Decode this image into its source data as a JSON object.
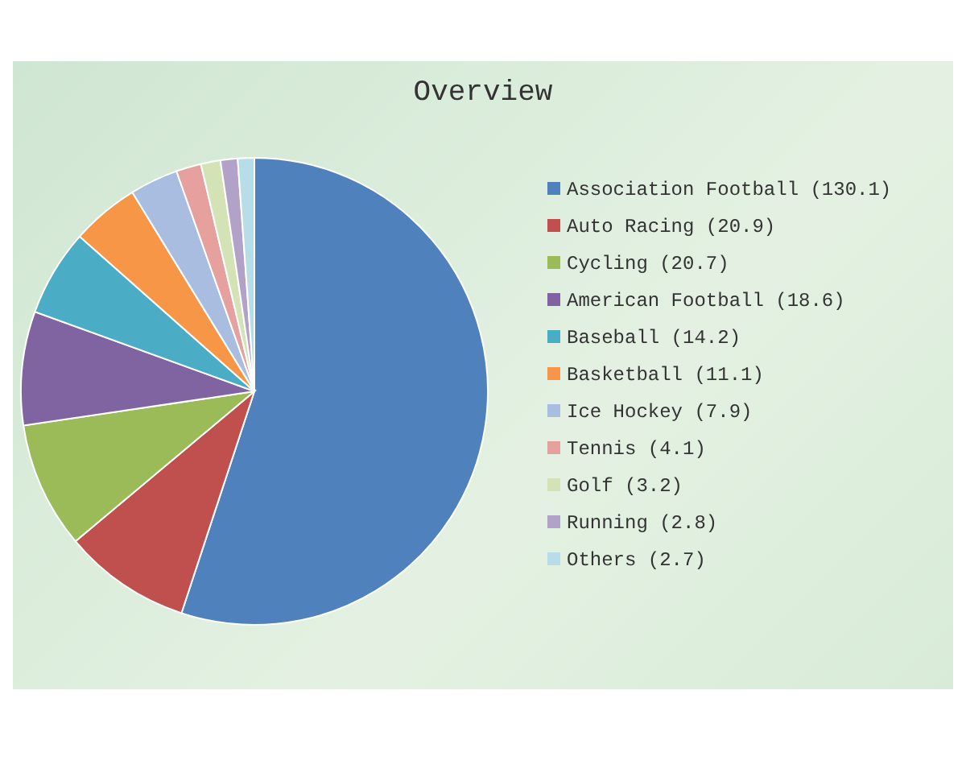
{
  "chart_data": {
    "type": "pie",
    "title": "Overview",
    "legend": "right",
    "categories": [
      "Association Football  (130.1)",
      "Auto Racing  (20.9)",
      "Cycling  (20.7)",
      "American Football  (18.6)",
      "Baseball  (14.2)",
      "Basketball  (11.1)",
      "Ice Hockey  (7.9)",
      "Tennis  (4.1)",
      "Golf  (3.2)",
      "Running  (2.8)",
      "Others  (2.7)"
    ],
    "values": [
      130.1,
      20.9,
      20.7,
      18.6,
      14.2,
      11.1,
      7.9,
      4.1,
      3.2,
      2.8,
      2.7
    ],
    "colors": [
      "#4f81bd",
      "#c0504d",
      "#9bbb59",
      "#8064a2",
      "#4bacc6",
      "#f79646",
      "#a8bde0",
      "#e6a09e",
      "#d4e3b5",
      "#b3a2c7",
      "#b7dee8"
    ]
  }
}
